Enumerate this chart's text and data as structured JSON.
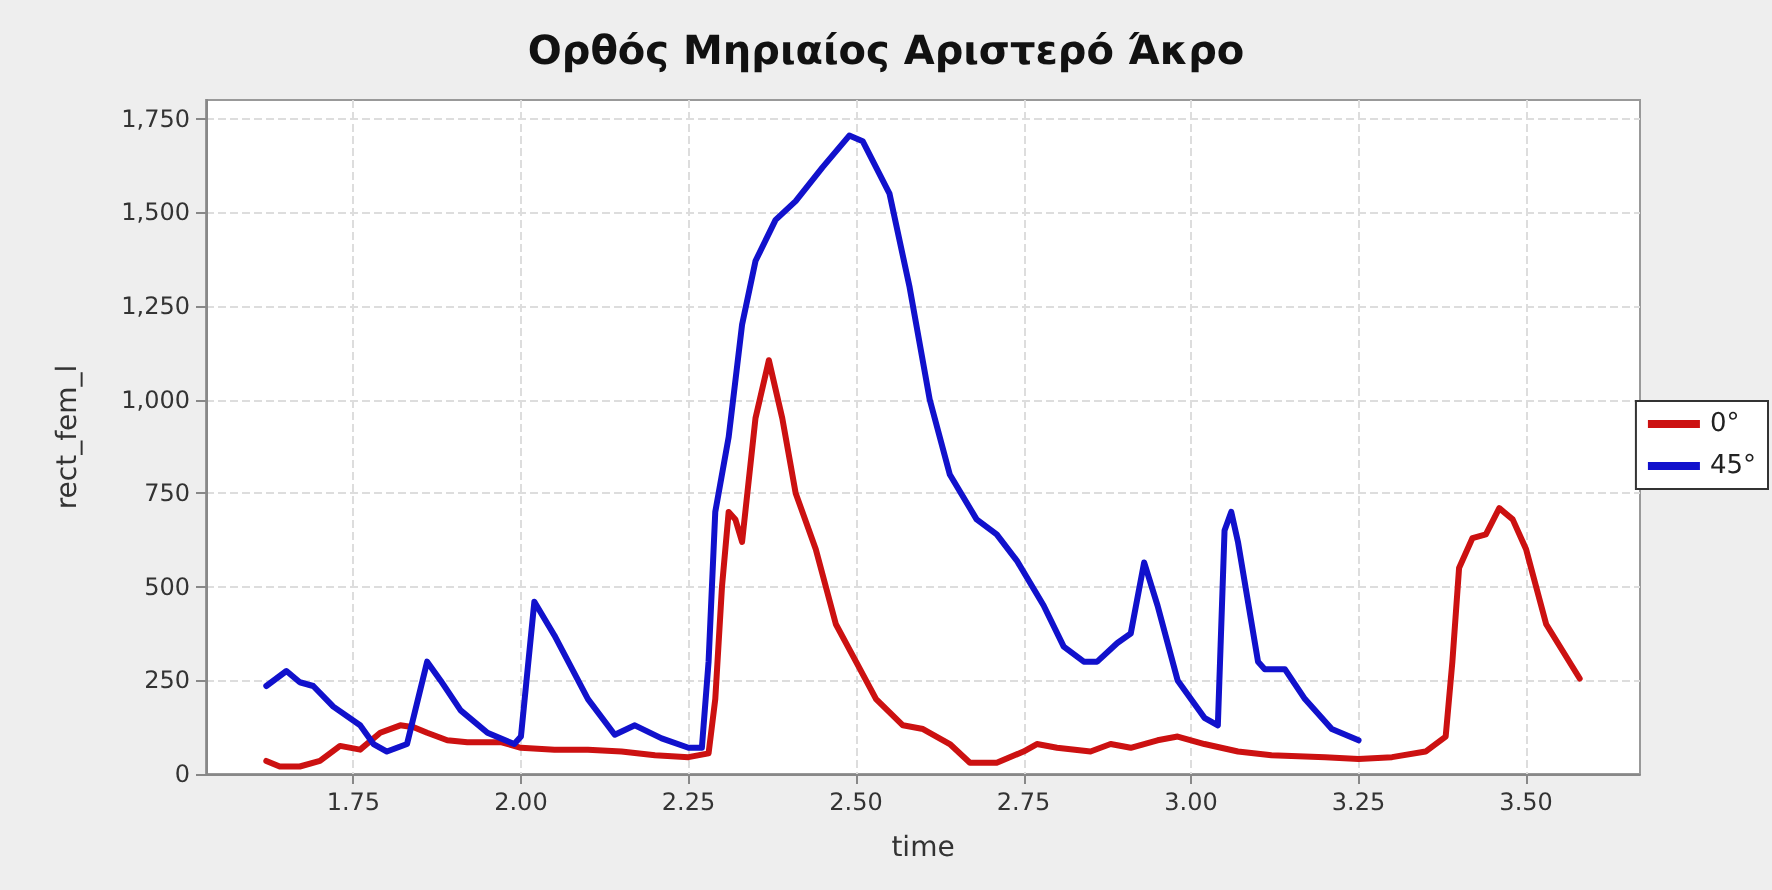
{
  "chart_data": {
    "type": "line",
    "title": "Ορθός Μηριαίος Αριστερό Άκρο",
    "xlabel": "time",
    "ylabel": "rect_fem_l",
    "xlim": [
      1.53,
      3.67
    ],
    "xticks": [
      {
        "value": 1.75,
        "label": "1.75"
      },
      {
        "value": 2,
        "label": "2.00"
      },
      {
        "value": 2.25,
        "label": "2.25"
      },
      {
        "value": 2.5,
        "label": "2.50"
      },
      {
        "value": 2.75,
        "label": "2.75"
      },
      {
        "value": 3,
        "label": "3.00"
      },
      {
        "value": 3.25,
        "label": "3.25"
      },
      {
        "value": 3.5,
        "label": "3.50"
      }
    ],
    "ylim": [
      0,
      1800
    ],
    "yticks": [
      0,
      250,
      500,
      750,
      {
        "value": 1000,
        "label": "1,000"
      },
      {
        "value": 1250,
        "label": "1,250"
      },
      {
        "value": 1500,
        "label": "1,500"
      },
      {
        "value": 1750,
        "label": "1,750"
      }
    ],
    "grid": true,
    "legend": "right",
    "marker": "none",
    "line_style": "solid",
    "series": [
      {
        "name": "0°",
        "color": "#cc1111",
        "x": [
          1.62,
          1.64,
          1.67,
          1.7,
          1.73,
          1.76,
          1.79,
          1.82,
          1.84,
          1.86,
          1.89,
          1.92,
          1.97,
          2.0,
          2.05,
          2.1,
          2.15,
          2.2,
          2.25,
          2.28,
          2.29,
          2.3,
          2.31,
          2.32,
          2.33,
          2.35,
          2.37,
          2.39,
          2.41,
          2.44,
          2.47,
          2.5,
          2.53,
          2.57,
          2.6,
          2.64,
          2.67,
          2.71,
          2.75,
          2.77,
          2.8,
          2.85,
          2.88,
          2.91,
          2.95,
          2.98,
          3.02,
          3.07,
          3.12,
          3.2,
          3.25,
          3.3,
          3.35,
          3.38,
          3.39,
          3.4,
          3.42,
          3.44,
          3.46,
          3.48,
          3.5,
          3.53,
          3.58
        ],
        "values": [
          35,
          20,
          20,
          35,
          75,
          65,
          110,
          130,
          125,
          110,
          90,
          85,
          85,
          70,
          65,
          65,
          60,
          50,
          45,
          55,
          200,
          500,
          700,
          680,
          620,
          950,
          1105,
          950,
          750,
          600,
          400,
          300,
          200,
          130,
          120,
          80,
          30,
          30,
          60,
          80,
          70,
          60,
          80,
          70,
          90,
          100,
          80,
          60,
          50,
          45,
          40,
          45,
          60,
          100,
          300,
          550,
          630,
          640,
          710,
          680,
          600,
          400,
          255
        ]
      },
      {
        "name": "45°",
        "color": "#1111cc",
        "x": [
          1.62,
          1.65,
          1.67,
          1.69,
          1.72,
          1.76,
          1.78,
          1.8,
          1.83,
          1.86,
          1.88,
          1.91,
          1.95,
          1.99,
          2.0,
          2.02,
          2.05,
          2.1,
          2.14,
          2.17,
          2.21,
          2.25,
          2.27,
          2.28,
          2.29,
          2.31,
          2.33,
          2.35,
          2.38,
          2.41,
          2.45,
          2.49,
          2.51,
          2.55,
          2.58,
          2.61,
          2.64,
          2.68,
          2.71,
          2.74,
          2.78,
          2.81,
          2.84,
          2.86,
          2.89,
          2.91,
          2.93,
          2.95,
          2.98,
          3.02,
          3.04,
          3.05,
          3.06,
          3.07,
          3.1,
          3.11,
          3.14,
          3.17,
          3.21,
          3.25
        ],
        "values": [
          235,
          275,
          245,
          235,
          180,
          130,
          80,
          60,
          80,
          300,
          250,
          170,
          110,
          80,
          100,
          460,
          370,
          200,
          105,
          130,
          95,
          70,
          70,
          300,
          700,
          900,
          1200,
          1370,
          1480,
          1530,
          1620,
          1705,
          1690,
          1550,
          1300,
          1000,
          800,
          680,
          640,
          570,
          450,
          340,
          300,
          300,
          350,
          375,
          565,
          450,
          250,
          150,
          130,
          650,
          700,
          620,
          300,
          280,
          280,
          200,
          120,
          90
        ]
      }
    ]
  }
}
